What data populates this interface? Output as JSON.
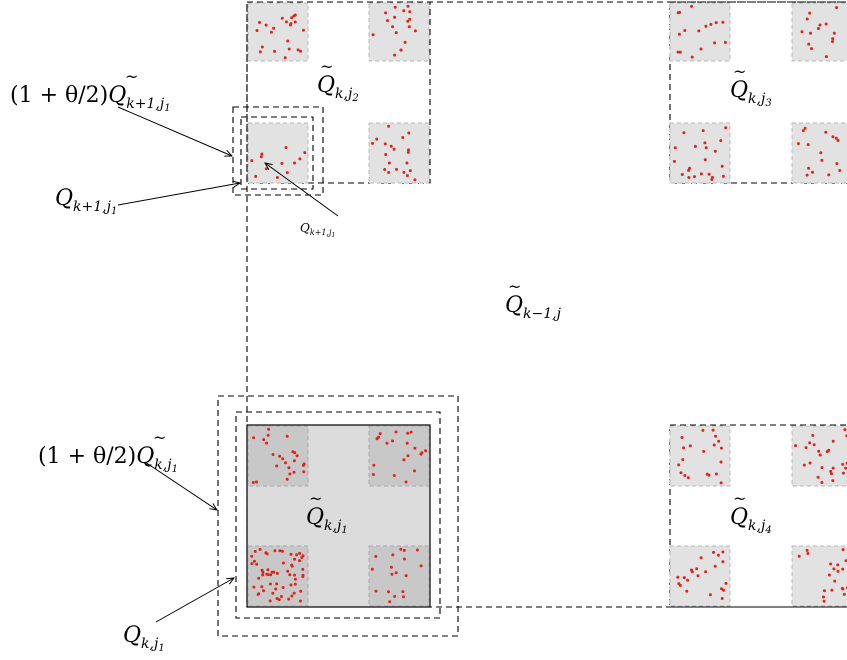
{
  "labels": {
    "q_k_j2": {
      "main": "Q",
      "sub": "k,j",
      "subsub": "2"
    },
    "q_k_j3": {
      "main": "Q",
      "sub": "k,j",
      "subsub": "3"
    },
    "q_k_j4": {
      "main": "Q",
      "sub": "k,j",
      "subsub": "4"
    },
    "q_k_j1": {
      "main": "Q",
      "sub": "k,j",
      "subsub": "1"
    },
    "q_km1_j": {
      "main": "Q",
      "sub": "k−1,j"
    },
    "enlarged_k1_j1": {
      "prefix": "(1 + θ/2)",
      "main": "Q",
      "sub": "k+1,j",
      "subsub": "1"
    },
    "enlarged_k_j1": {
      "prefix": "(1 + θ/2)",
      "main": "Q",
      "sub": "k,j",
      "subsub": "1"
    },
    "plain_k1_j1": {
      "main": "Q",
      "sub": "k+1,j",
      "subsub": "1"
    },
    "plain_k1_j1_small": {
      "main": "Q",
      "sub": "k+1,j",
      "subsub": "1"
    },
    "plain_k_j1": {
      "main": "Q",
      "sub": "k,j",
      "subsub": "1"
    }
  },
  "colors": {
    "points": "#e2231a",
    "light_square": "#e2e2e2",
    "dark_square": "#c8c8c8",
    "big_square": "#dcdcdc"
  }
}
